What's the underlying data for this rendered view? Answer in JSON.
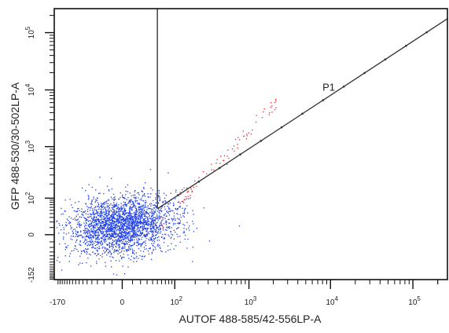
{
  "chart_data": {
    "type": "scatter",
    "title": "",
    "xlabel": "AUTOF 488-585/42-556LP-A",
    "ylabel": "GFP 488-530/30-502LP-A",
    "x_scale": "biexponential",
    "y_scale": "biexponential",
    "xlim": [
      -170,
      262144
    ],
    "ylim": [
      -152,
      262144
    ],
    "x_ticks": [
      {
        "value": -170,
        "base": "-170",
        "exp": ""
      },
      {
        "value": 0,
        "base": "0",
        "exp": ""
      },
      {
        "value": 100,
        "base": "10",
        "exp": "2"
      },
      {
        "value": 1000,
        "base": "10",
        "exp": "3"
      },
      {
        "value": 10000,
        "base": "10",
        "exp": "4"
      },
      {
        "value": 100000,
        "base": "10",
        "exp": "5"
      }
    ],
    "y_ticks": [
      {
        "value": -152,
        "base": "-152",
        "exp": ""
      },
      {
        "value": 0,
        "base": "0",
        "exp": ""
      },
      {
        "value": 100,
        "base": "10",
        "exp": "2"
      },
      {
        "value": 1000,
        "base": "10",
        "exp": "3"
      },
      {
        "value": 10000,
        "base": "10",
        "exp": "4"
      },
      {
        "value": 100000,
        "base": "10",
        "exp": "5"
      }
    ],
    "gate": {
      "name": "P1",
      "vertical_line_x": 50,
      "diagonal_line": [
        [
          50,
          55
        ],
        [
          262144,
          175000
        ]
      ],
      "color": "#333333"
    },
    "series": [
      {
        "color": "#1f3fe6",
        "center": [
          0,
          15
        ],
        "spread": [
          1.0,
          0.9
        ],
        "n": 2600
      },
      {
        "color": "#ee2222",
        "center": [
          300,
          800
        ],
        "spread": [
          2.2,
          2.2
        ],
        "n": 80
      }
    ],
    "grid": false,
    "legend": "none"
  }
}
